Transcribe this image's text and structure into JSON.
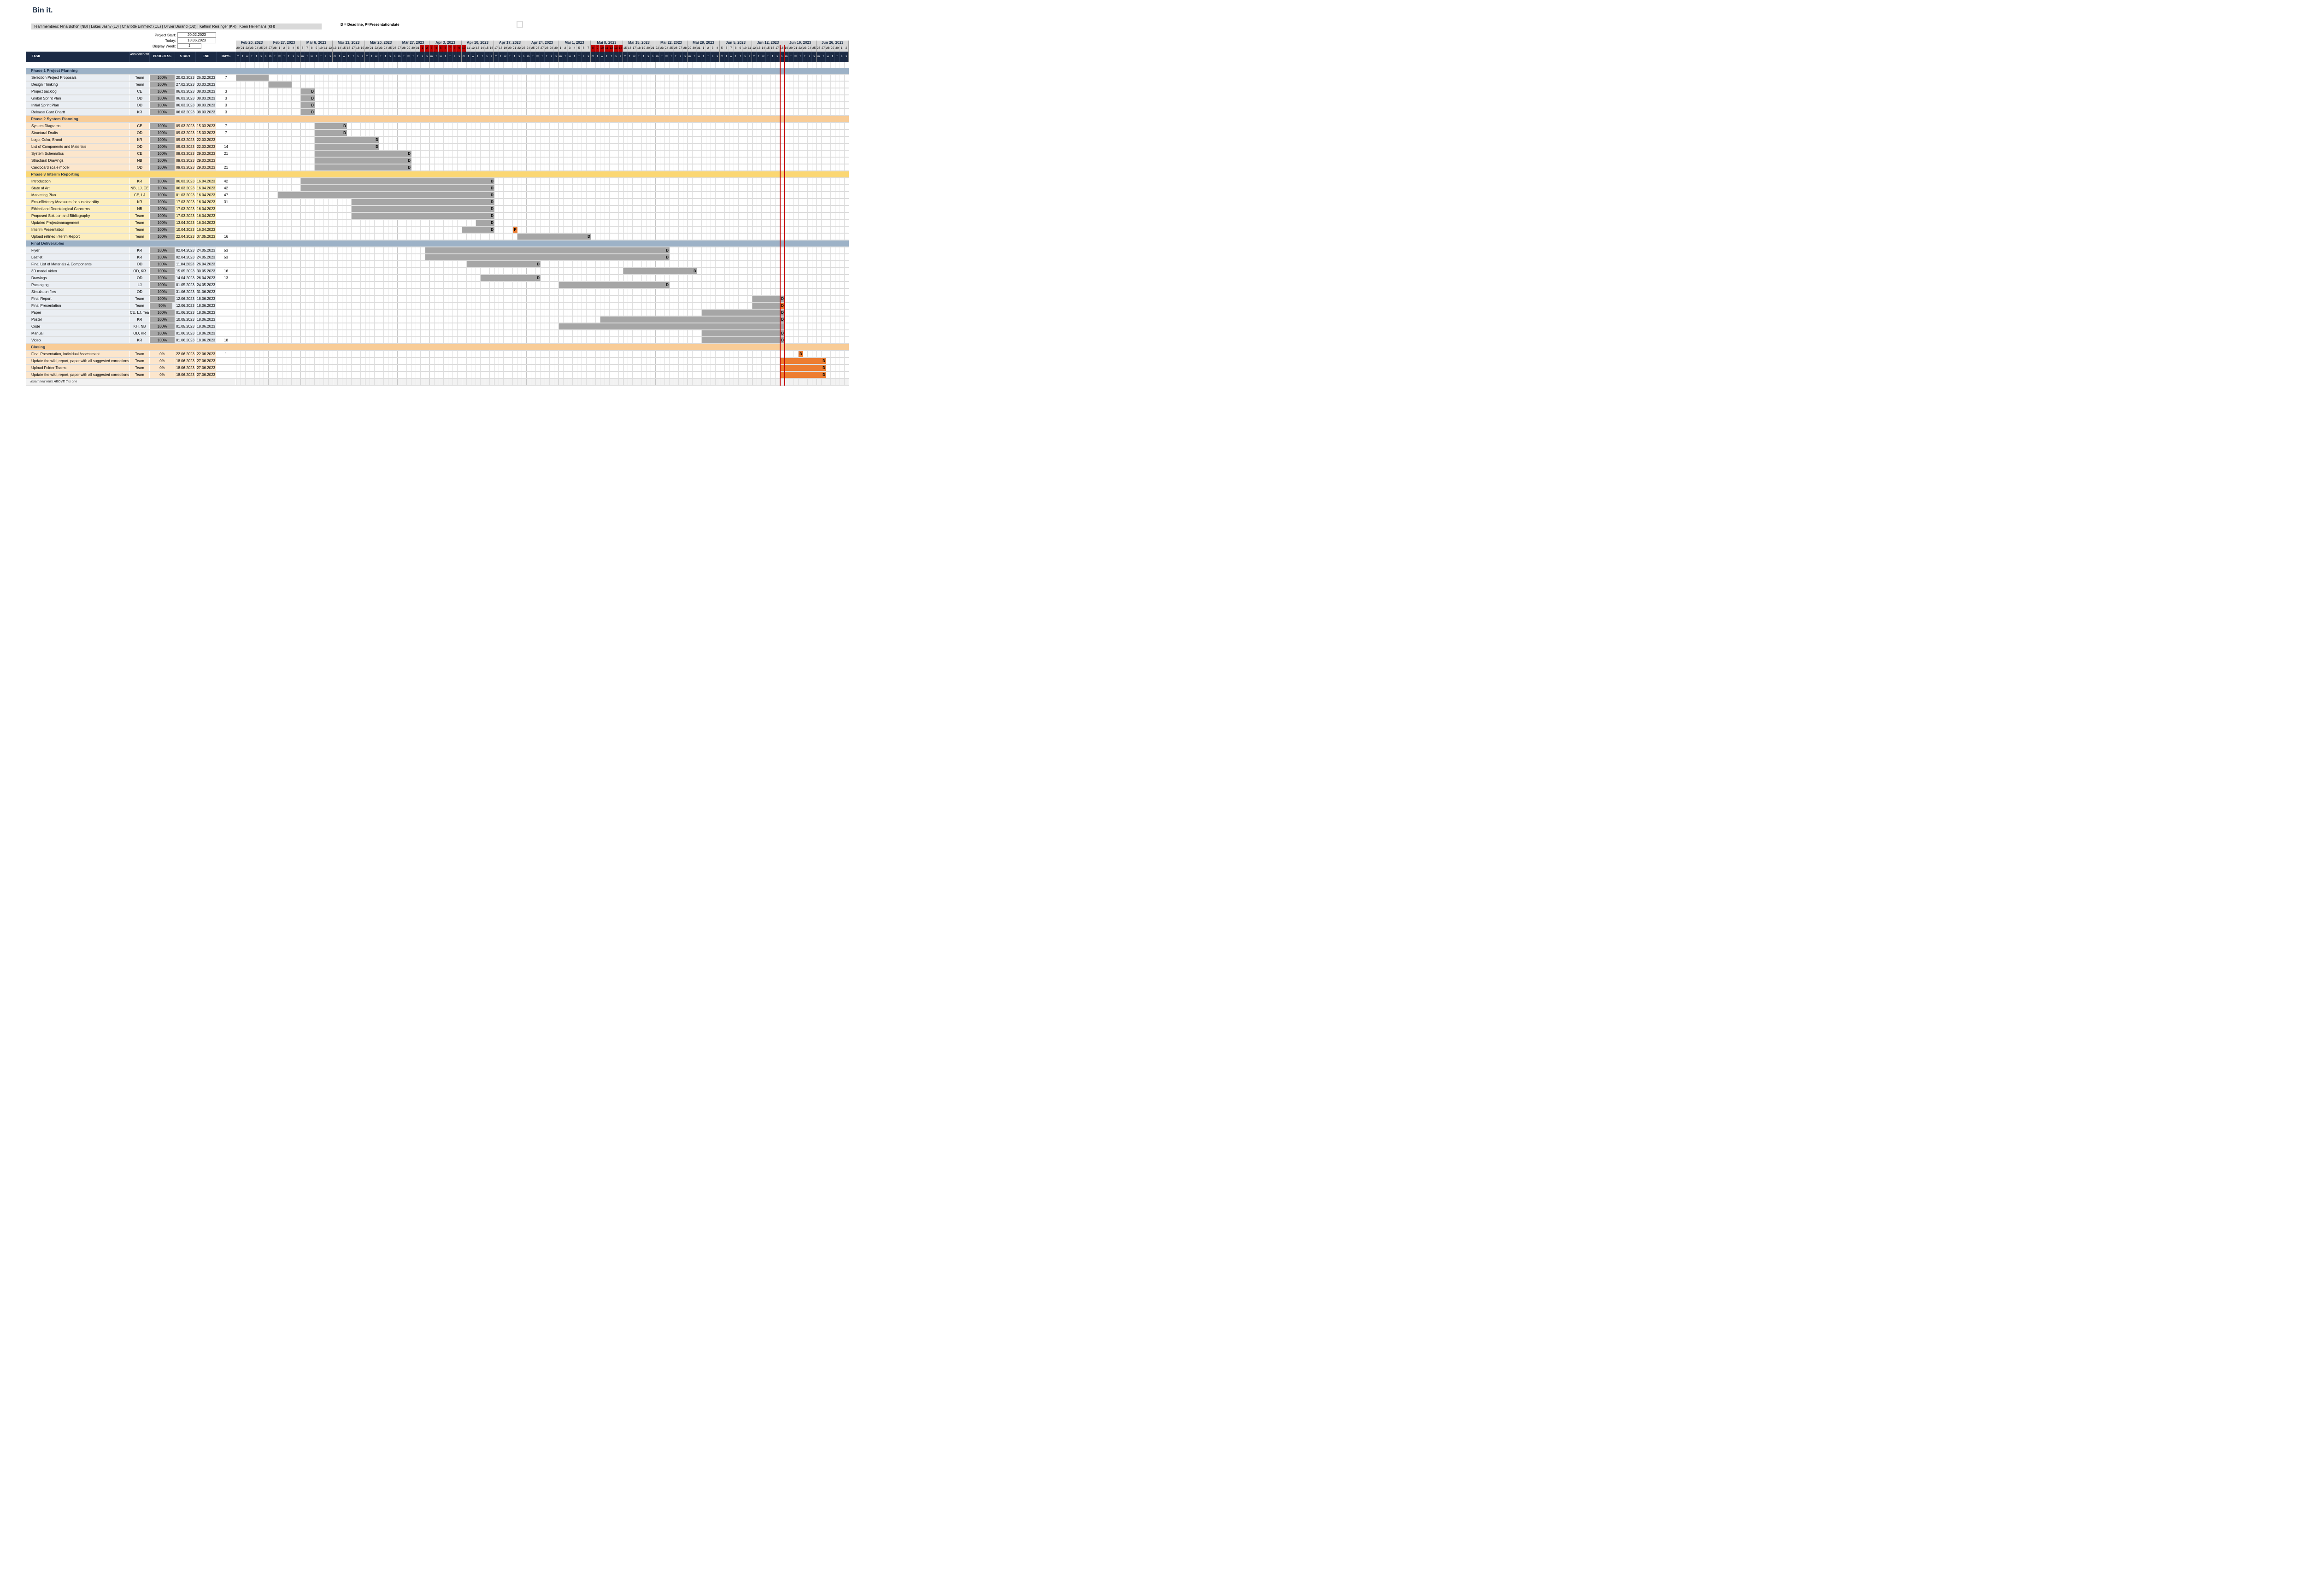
{
  "header": {
    "title": "Bin it.",
    "teammembers": "Teammembers:  Nina Bohon (NB) | Lukas Jasny (LJ) | Charlotte Emmelot (CE) | Olivier Durand (OD) | Kathrin Reisinger (KR) | Koen Hellemans (KH)",
    "legend": "D = Deadline, P=Presentationdate",
    "fields": {
      "project_start_label": "Project Start:",
      "project_start_value": "20.02.2023",
      "today_label": "Today:",
      "today_value": "18.06.2023",
      "display_week_label": "Display Week:",
      "display_week_value": "1"
    }
  },
  "table": {
    "columns": [
      "TASK",
      "ASSIGNED TO",
      "PROGRESS",
      "START",
      "END",
      "DAYS"
    ],
    "footer_note": "Insert new rows ABOVE this one"
  },
  "timeline": {
    "project_start_date": "20.02.2023",
    "today_date": "18.06.2023",
    "num_days": 133,
    "weeks": [
      "Feb 20, 2023",
      "Feb 27, 2023",
      "Mär 6, 2023",
      "Mär 13, 2023",
      "Mär 20, 2023",
      "Mär 27, 2023",
      "Apr 3, 2023",
      "Apr 10, 2023",
      "Apr 17, 2023",
      "Apr 24, 2023",
      "Mai 1, 2023",
      "Mai 8, 2023",
      "Mai 15, 2023",
      "Mai 22, 2023",
      "Mai 29, 2023",
      "Jun 5, 2023",
      "Jun 12, 2023",
      "Jun 19, 2023",
      "Jun 26, 2023"
    ],
    "weekday_letters": [
      "m",
      "t",
      "w",
      "t",
      "f",
      "s",
      "s"
    ],
    "red_day_ranges": [
      [
        "01.04.2023",
        "10.04.2023"
      ],
      [
        "08.05.2023",
        "14.05.2023"
      ]
    ],
    "deadline_letter": "D",
    "presentation_letter": "P"
  },
  "colors": {
    "navy": "#1b2a44",
    "banner_blue": "#9db2c7",
    "row_blue": "#eaeef3",
    "banner_peach": "#f8cc97",
    "row_peach": "#fce6cc",
    "banner_gold": "#fbd773",
    "row_gold": "#fdeebd",
    "bar_gray": "#a6a6a6",
    "accent_orange": "#ed7d31",
    "deadline_red": "#c00000",
    "header_gray": "#d9d9d9"
  },
  "phases": [
    {
      "name": "Phase 1 Project Planning",
      "type": "blue",
      "tasks": [
        {
          "task": "Selection Project Proposals",
          "assigned": "Team",
          "progress": "100%",
          "start": "20.02.2023",
          "end": "26.02.2023",
          "days": "7",
          "deadline": false
        },
        {
          "task": "Design Thinking",
          "assigned": "Team",
          "progress": "100%",
          "start": "27.02.2023",
          "end": "03.03.2023",
          "days": "",
          "deadline": false
        },
        {
          "task": "Project backlog",
          "assigned": "CE",
          "progress": "100%",
          "start": "06.03.2023",
          "end": "08.03.2023",
          "days": "3",
          "deadline": true
        },
        {
          "task": "Global Sprint Plan",
          "assigned": "OD",
          "progress": "100%",
          "start": "06.03.2023",
          "end": "08.03.2023",
          "days": "3",
          "deadline": true
        },
        {
          "task": "Initial Sprint Plan",
          "assigned": "OD",
          "progress": "100%",
          "start": "06.03.2023",
          "end": "08.03.2023",
          "days": "3",
          "deadline": true
        },
        {
          "task": "Release Gant Chartt",
          "assigned": "KR",
          "progress": "100%",
          "start": "06.03.2023",
          "end": "08.03.2023",
          "days": "3",
          "deadline": true
        }
      ]
    },
    {
      "name": "Phase 2 System Planning",
      "type": "peach",
      "tasks": [
        {
          "task": "System Diagrams",
          "assigned": "CE",
          "progress": "100%",
          "start": "09.03.2023",
          "end": "15.03.2023",
          "days": "7",
          "deadline": true
        },
        {
          "task": "Structural Drafts",
          "assigned": "OD",
          "progress": "100%",
          "start": "09.03.2023",
          "end": "15.03.2023",
          "days": "7",
          "deadline": true
        },
        {
          "task": "Logo, Color, Brand",
          "assigned": "KR",
          "progress": "100%",
          "start": "09.03.2023",
          "end": "22.03.2023",
          "days": "",
          "deadline": true
        },
        {
          "task": "List of Components and Materials",
          "assigned": "OD",
          "progress": "100%",
          "start": "09.03.2023",
          "end": "22.03.2023",
          "days": "14",
          "deadline": true
        },
        {
          "task": "System Schematics",
          "assigned": "CE",
          "progress": "100%",
          "start": "09.03.2023",
          "end": "29.03.2023",
          "days": "21",
          "deadline": true
        },
        {
          "task": "Structural Drawings",
          "assigned": "NB",
          "progress": "100%",
          "start": "09.03.2023",
          "end": "29.03.2023",
          "days": "",
          "deadline": true
        },
        {
          "task": "Cardboard scale model",
          "assigned": "OD",
          "progress": "100%",
          "start": "09.03.2023",
          "end": "29.03.2023",
          "days": "21",
          "deadline": true
        }
      ]
    },
    {
      "name": "Phase 3 Interim Reporting",
      "type": "gold",
      "tasks": [
        {
          "task": "Introduction",
          "assigned": "KR",
          "progress": "100%",
          "start": "06.03.2023",
          "end": "16.04.2023",
          "days": "42",
          "deadline": true
        },
        {
          "task": "State of Art",
          "assigned": "NB, LJ, CE",
          "progress": "100%",
          "start": "06.03.2023",
          "end": "16.04.2023",
          "days": "42",
          "deadline": true
        },
        {
          "task": "Marketing Plan",
          "assigned": "CE, LJ",
          "progress": "100%",
          "start": "01.03.2023",
          "end": "16.04.2023",
          "days": "47",
          "deadline": true
        },
        {
          "task": "Eco-efficiency Measures for sustainability",
          "assigned": "KR",
          "progress": "100%",
          "start": "17.03.2023",
          "end": "16.04.2023",
          "days": "31",
          "deadline": true
        },
        {
          "task": "Ethical and Deontological Concerns",
          "assigned": "NB",
          "progress": "100%",
          "start": "17.03.2023",
          "end": "16.04.2023",
          "days": "",
          "deadline": true
        },
        {
          "task": "Proposed Solution and Bibliography",
          "assigned": "Team",
          "progress": "100%",
          "start": "17.03.2023",
          "end": "16.04.2023",
          "days": "",
          "deadline": true
        },
        {
          "task": "Updated Projectmanagement",
          "assigned": "Team",
          "progress": "100%",
          "start": "13.04.2023",
          "end": "16.04.2023",
          "days": "",
          "deadline": true
        },
        {
          "task": "Interim Presentation",
          "assigned": "Team",
          "progress": "100%",
          "start": "10.04.2023",
          "end": "16.04.2023",
          "days": "",
          "deadline": true,
          "presentation_date": "21.04.2023"
        },
        {
          "task": "Upload refined Interim Report",
          "assigned": "Team",
          "progress": "100%",
          "start": "22.04.2023",
          "end": "07.05.2023",
          "days": "16",
          "deadline": true
        }
      ]
    },
    {
      "name": "Final Deliverables",
      "type": "blue",
      "tasks": [
        {
          "task": "Flyer",
          "assigned": "KR",
          "progress": "100%",
          "start": "02.04.2023",
          "end": "24.05.2023",
          "days": "53",
          "deadline": true
        },
        {
          "task": "Leaflet",
          "assigned": "KR",
          "progress": "100%",
          "start": "02.04.2023",
          "end": "24.05.2023",
          "days": "53",
          "deadline": true
        },
        {
          "task": "Final List of Materials & Components",
          "assigned": "OD",
          "progress": "100%",
          "start": "11.04.2023",
          "end": "26.04.2023",
          "days": "",
          "deadline": true
        },
        {
          "task": "3D model video",
          "assigned": "OD, KR",
          "progress": "100%",
          "start": "15.05.2023",
          "end": "30.05.2023",
          "days": "16",
          "deadline": true
        },
        {
          "task": "Drawings",
          "assigned": "OD",
          "progress": "100%",
          "start": "14.04.2023",
          "end": "26.04.2023",
          "days": "13",
          "deadline": true
        },
        {
          "task": "Packaging",
          "assigned": "LJ",
          "progress": "100%",
          "start": "01.05.2023",
          "end": "24.05.2023",
          "days": "",
          "deadline": true
        },
        {
          "task": "Simulation files",
          "assigned": "OD",
          "progress": "100%",
          "start": "31.06.2023",
          "end": "31.06.2023",
          "days": "",
          "deadline": false
        },
        {
          "task": "Final Report",
          "assigned": "Team",
          "progress": "100%",
          "start": "12.06.2023",
          "end": "18.06.2023",
          "days": "",
          "deadline": true
        },
        {
          "task": "Final Presentation",
          "assigned": "Team",
          "progress": "90%",
          "start": "12.06.2023",
          "end": "18.06.2023",
          "days": "",
          "deadline": true,
          "deadline_color": "orange"
        },
        {
          "task": "Paper",
          "assigned": "CE, LJ, Team",
          "progress": "100%",
          "start": "01.06.2023",
          "end": "18.06.2023",
          "days": "",
          "deadline": true
        },
        {
          "task": "Poster",
          "assigned": "KR",
          "progress": "100%",
          "start": "10.05.2023",
          "end": "18.06.2023",
          "days": "",
          "deadline": true
        },
        {
          "task": "Code",
          "assigned": "KH, NB",
          "progress": "100%",
          "start": "01.05.2023",
          "end": "18.06.2023",
          "days": "",
          "deadline": false
        },
        {
          "task": "Manual",
          "assigned": "OD, KR",
          "progress": "100%",
          "start": "01.06.2023",
          "end": "18.06.2023",
          "days": "",
          "deadline": true
        },
        {
          "task": "Video",
          "assigned": "KR",
          "progress": "100%",
          "start": "01.06.2023",
          "end": "18.06.2023",
          "days": "18",
          "deadline": true
        }
      ]
    },
    {
      "name": "Closing",
      "type": "peach",
      "bar_color": "orange",
      "tasks": [
        {
          "task": "Final Presentation, Individual Assessment",
          "assigned": "Team",
          "progress": "0%",
          "start": "22.06.2023",
          "end": "22.06.2023",
          "days": "1",
          "deadline": true
        },
        {
          "task": "Update the wiki, report, paper with all suggested corrections",
          "assigned": "Team",
          "progress": "0%",
          "start": "18.06.2023",
          "end": "27.06.2023",
          "days": "",
          "deadline": true
        },
        {
          "task": "Upload Folder Teams",
          "assigned": "Team",
          "progress": "0%",
          "start": "18.06.2023",
          "end": "27.06.2023",
          "days": "",
          "deadline": true
        },
        {
          "task": "Update the wiki, report, paper with all suggested corrections",
          "assigned": "Team",
          "progress": "0%",
          "start": "18.06.2023",
          "end": "27.06.2023",
          "days": "",
          "deadline": true
        }
      ]
    }
  ]
}
